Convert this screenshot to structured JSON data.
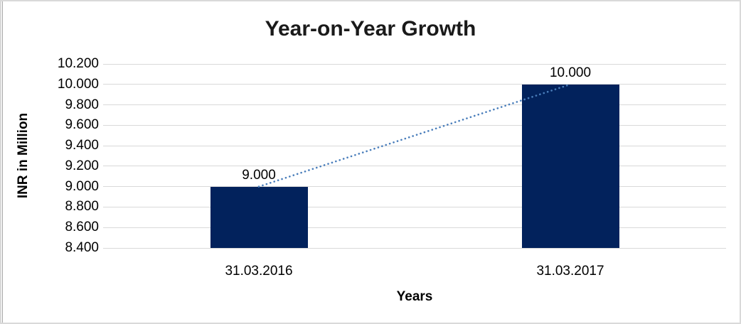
{
  "chart_data": {
    "type": "bar",
    "title": "Year-on-Year Growth",
    "xlabel": "Years",
    "ylabel": "INR in Million",
    "categories": [
      "31.03.2016",
      "31.03.2017"
    ],
    "values": [
      9.0,
      10.0
    ],
    "value_labels": [
      "9.000",
      "10.000"
    ],
    "ylim": [
      8.4,
      10.2
    ],
    "ytick_step": 0.2,
    "ytick_labels": [
      "8.400",
      "8.600",
      "8.800",
      "9.000",
      "9.200",
      "9.400",
      "9.600",
      "9.800",
      "10.000",
      "10.200"
    ],
    "grid": "horizontal",
    "legend": "none",
    "trendline": {
      "type": "linear",
      "style": "dotted",
      "color": "#4A7EBB",
      "from_value": 9.0,
      "to_value": 10.0
    },
    "colors": {
      "bar": "#02225C",
      "gridline": "#D9D9D9",
      "frame_border": "#D9D9D9",
      "left_edge_line": "#A6A6A6",
      "text": "#000000",
      "title_text": "#1A1A1A"
    }
  }
}
